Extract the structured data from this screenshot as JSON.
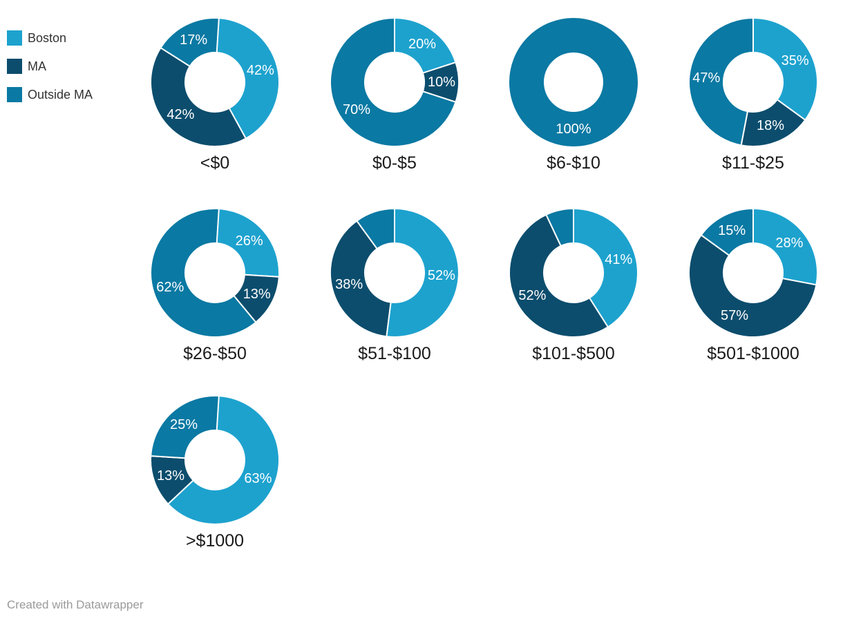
{
  "page": {
    "background": "#ffffff"
  },
  "legend": {
    "position": "top-left",
    "items": [
      {
        "label": "Boston",
        "color": "#1da2ce"
      },
      {
        "label": "MA",
        "color": "#0c4d6d"
      },
      {
        "label": "Outside MA",
        "color": "#0a79a3"
      }
    ]
  },
  "footer": {
    "credit": "Created with Datawrapper"
  },
  "chart_data": {
    "type": "pie",
    "subtype": "donut-small-multiples",
    "unit": "%",
    "legend_position": "top-left",
    "series_labels": [
      "Boston",
      "MA",
      "Outside MA"
    ],
    "series_colors": [
      "#1da2ce",
      "#0c4d6d",
      "#0a79a3"
    ],
    "label_text_color": "#ffffff",
    "separator_color": "#ffffff",
    "charts": [
      {
        "category": "<$0",
        "values": [
          42,
          42,
          17
        ],
        "labels": [
          "42%",
          "42%",
          "17%"
        ]
      },
      {
        "category": "$0-$5",
        "values": [
          20,
          10,
          70
        ],
        "labels": [
          "20%",
          "10%",
          "70%"
        ]
      },
      {
        "category": "$6-$10",
        "values": [
          0,
          0,
          100
        ],
        "labels": [
          "",
          "",
          "100%"
        ]
      },
      {
        "category": "$11-$25",
        "values": [
          35,
          18,
          47
        ],
        "labels": [
          "35%",
          "18%",
          "47%"
        ]
      },
      {
        "category": "$26-$50",
        "values": [
          26,
          13,
          62
        ],
        "labels": [
          "26%",
          "13%",
          "62%"
        ]
      },
      {
        "category": "$51-$100",
        "values": [
          52,
          38,
          10
        ],
        "labels": [
          "52%",
          "38%",
          ""
        ]
      },
      {
        "category": "$101-$500",
        "values": [
          41,
          52,
          7
        ],
        "labels": [
          "41%",
          "52%",
          ""
        ]
      },
      {
        "category": "$501-$1000",
        "values": [
          28,
          57,
          15
        ],
        "labels": [
          "28%",
          "57%",
          "15%"
        ]
      },
      {
        "category": ">$1000",
        "values": [
          63,
          13,
          25
        ],
        "labels": [
          "63%",
          "13%",
          "25%"
        ]
      }
    ]
  }
}
